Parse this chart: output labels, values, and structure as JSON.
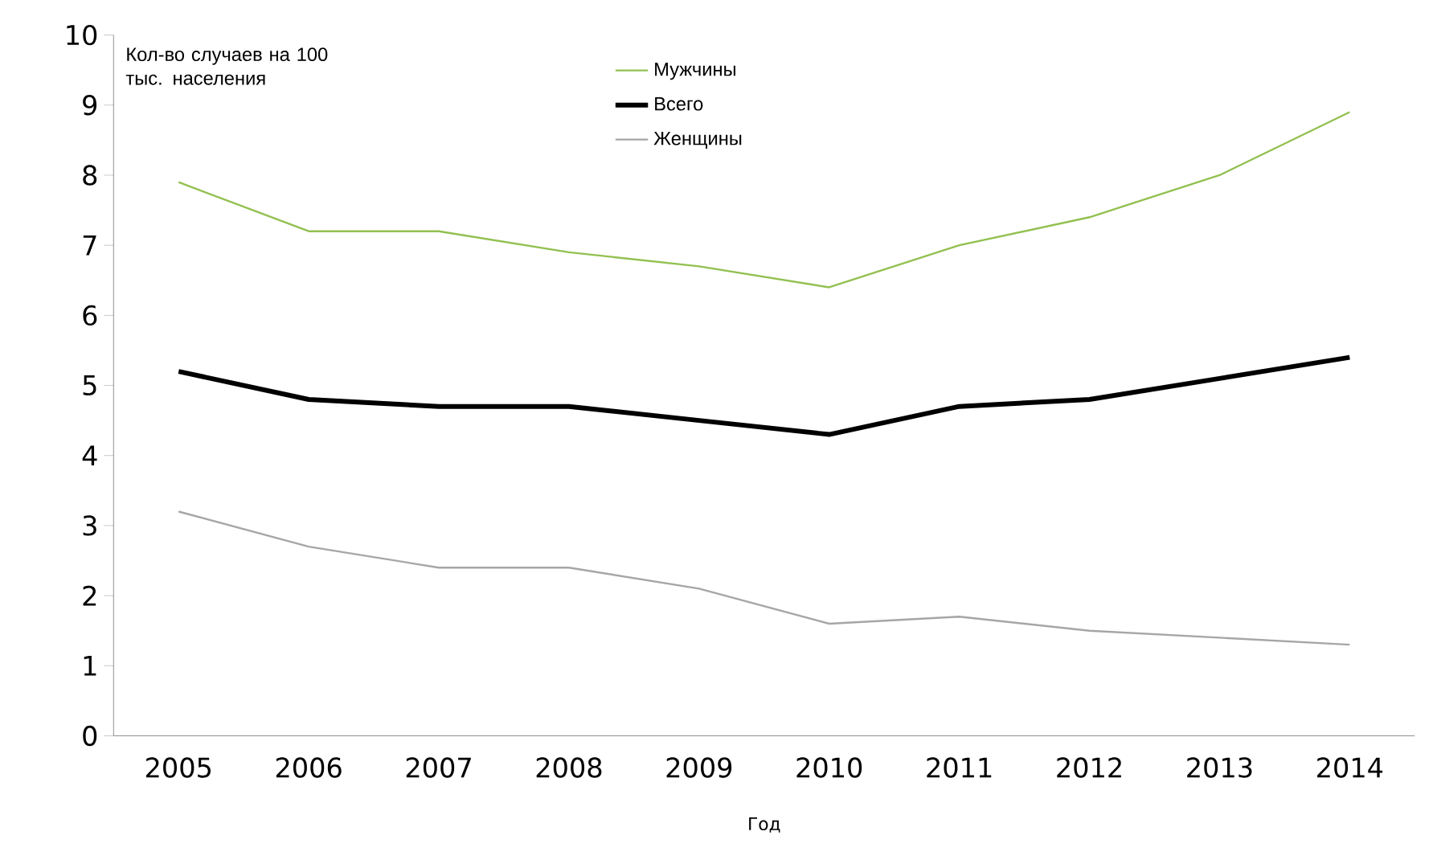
{
  "chart_data": {
    "type": "line",
    "xlabel": "Год",
    "ylabel": "Кол-во случаев на 100 тыс. населения",
    "categories": [
      "2005",
      "2006",
      "2007",
      "2008",
      "2009",
      "2010",
      "2011",
      "2012",
      "2013",
      "2014"
    ],
    "series": [
      {
        "name": "Мужчины",
        "color": "#92c050",
        "values": [
          7.9,
          7.2,
          7.2,
          6.9,
          6.7,
          6.4,
          7.0,
          7.4,
          8.0,
          8.9
        ]
      },
      {
        "name": "Всего",
        "color": "#000000",
        "values": [
          5.2,
          4.8,
          4.7,
          4.7,
          4.5,
          4.3,
          4.7,
          4.8,
          5.1,
          5.4
        ]
      },
      {
        "name": "Женщины",
        "color": "#a6a6a6",
        "values": [
          3.2,
          2.7,
          2.4,
          2.4,
          2.1,
          1.6,
          1.7,
          1.5,
          1.4,
          1.3
        ]
      }
    ],
    "ylim": [
      0,
      10
    ],
    "yticks": [
      0,
      1,
      2,
      3,
      4,
      5,
      6,
      7,
      8,
      9,
      10
    ],
    "legend": "top",
    "grid": false,
    "marker": "none",
    "line_style": "solid"
  }
}
